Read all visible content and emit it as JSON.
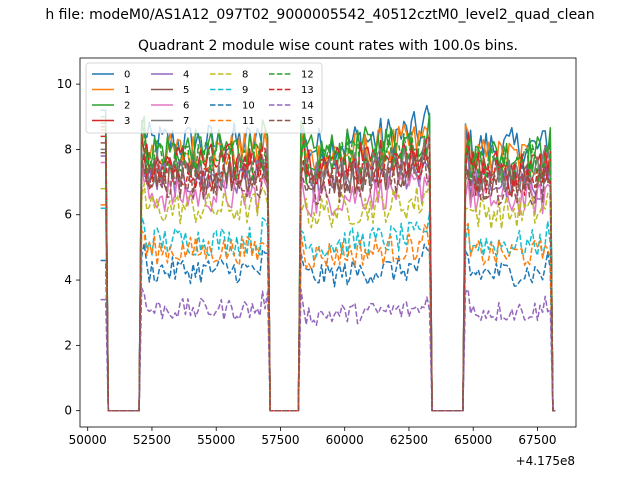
{
  "figure": {
    "suptitle": "h file: modeM0/AS1A12_097T02_9000005542_40512cztM0_level2_quad_clean",
    "background": "#ffffff"
  },
  "chart_data": {
    "type": "line",
    "title": "Quadrant 2 module wise count rates with 100.0s bins.",
    "xlabel": "",
    "ylabel": "",
    "x_offset_label": "+4.175e8",
    "xlim": [
      49700,
      69000
    ],
    "ylim": [
      -0.5,
      10.8
    ],
    "xticks": [
      50000,
      52500,
      55000,
      57500,
      60000,
      62500,
      65000,
      67500
    ],
    "yticks": [
      0,
      2,
      4,
      6,
      8,
      10
    ],
    "grid": false,
    "legend_position": "upper-left",
    "legend_columns": 4,
    "segments": [
      {
        "x0": 50800,
        "x1": 51900
      },
      {
        "x0": 52100,
        "x1": 57000
      },
      {
        "x0": 57100,
        "x1": 58200
      },
      {
        "x0": 58300,
        "x1": 63300
      },
      {
        "x0": 63400,
        "x1": 64600
      },
      {
        "x0": 64700,
        "x1": 68000
      }
    ],
    "series": [
      {
        "name": "0",
        "color": "#1f77b4",
        "style": "solid",
        "level": 8.2,
        "start": 9.2
      },
      {
        "name": "1",
        "color": "#ff7f0e",
        "style": "solid",
        "level": 7.9,
        "start": 8.6
      },
      {
        "name": "2",
        "color": "#2ca02c",
        "style": "solid",
        "level": 8.0,
        "start": 9.0
      },
      {
        "name": "3",
        "color": "#d62728",
        "style": "solid",
        "level": 7.6,
        "start": 8.7
      },
      {
        "name": "4",
        "color": "#9467bd",
        "style": "solid",
        "level": 7.1,
        "start": 7.8
      },
      {
        "name": "5",
        "color": "#8c564b",
        "style": "solid",
        "level": 7.2,
        "start": 7.9
      },
      {
        "name": "6",
        "color": "#e377c2",
        "style": "solid",
        "level": 6.6,
        "start": 7.6
      },
      {
        "name": "7",
        "color": "#7f7f7f",
        "style": "solid",
        "level": 7.4,
        "start": 8.0
      },
      {
        "name": "8",
        "color": "#bcbd22",
        "style": "dashed",
        "level": 6.2,
        "start": 6.8
      },
      {
        "name": "9",
        "color": "#17becf",
        "style": "dashed",
        "level": 5.2,
        "start": 6.2
      },
      {
        "name": "10",
        "color": "#1f77b4",
        "style": "dashed",
        "level": 4.3,
        "start": 4.6
      },
      {
        "name": "11",
        "color": "#ff7f0e",
        "style": "dashed",
        "level": 4.9,
        "start": 6.3
      },
      {
        "name": "12",
        "color": "#2ca02c",
        "style": "dashed",
        "level": 7.7,
        "start": 8.8
      },
      {
        "name": "13",
        "color": "#d62728",
        "style": "dashed",
        "level": 7.3,
        "start": 8.4
      },
      {
        "name": "14",
        "color": "#9467bd",
        "style": "dashed",
        "level": 3.1,
        "start": 3.4
      },
      {
        "name": "15",
        "color": "#8c564b",
        "style": "dashed",
        "level": 7.0,
        "start": 8.2
      }
    ]
  }
}
